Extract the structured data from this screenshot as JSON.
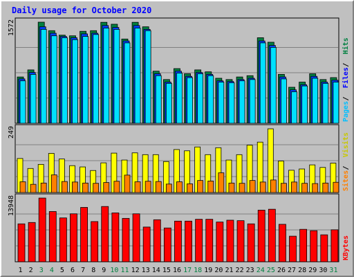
{
  "chart_data": {
    "type": "bar",
    "title": "Daily usage for October 2020",
    "categories": [
      "1",
      "2",
      "3",
      "4",
      "5",
      "6",
      "7",
      "8",
      "9",
      "10",
      "11",
      "12",
      "13",
      "14",
      "15",
      "16",
      "17",
      "18",
      "19",
      "20",
      "21",
      "22",
      "23",
      "24",
      "25",
      "26",
      "27",
      "28",
      "29",
      "30",
      "31"
    ],
    "weekend_days": [
      "3",
      "4",
      "10",
      "11",
      "17",
      "18",
      "24",
      "25",
      "31"
    ],
    "panels": [
      {
        "name": "hits-files-pages",
        "max_label": "1572",
        "ymax": 1572,
        "legend": [
          "Pages",
          "Files",
          "Hits"
        ],
        "series": [
          {
            "name": "Hits",
            "values": [
              720,
              830,
              1572,
              1440,
              1370,
              1360,
              1430,
              1440,
              1570,
              1540,
              1310,
              1570,
              1500,
              810,
              680,
              850,
              770,
              830,
              800,
              700,
              680,
              720,
              740,
              1330,
              1260,
              760,
              560,
              640,
              770,
              680,
              710
            ]
          },
          {
            "name": "Files",
            "values": [
              690,
              790,
              1500,
              1400,
              1350,
              1330,
              1390,
              1400,
              1520,
              1490,
              1280,
              1520,
              1460,
              770,
              640,
              810,
              730,
              790,
              760,
              660,
              650,
              680,
              700,
              1280,
              1210,
              720,
              520,
              600,
              730,
              640,
              670
            ]
          },
          {
            "name": "Pages",
            "values": [
              660,
              760,
              1460,
              1360,
              1330,
              1300,
              1350,
              1380,
              1480,
              1460,
              1250,
              1480,
              1440,
              740,
              620,
              780,
              710,
              770,
              740,
              640,
              630,
              660,
              680,
              1250,
              1180,
              690,
              490,
              580,
              700,
              620,
              640
            ]
          }
        ]
      },
      {
        "name": "visits-sites",
        "max_label": "249",
        "ymax": 249,
        "legend": [
          "Sites",
          "Visits"
        ],
        "series": [
          {
            "name": "Visits",
            "values": [
              133,
              94,
              110,
              153,
              131,
              105,
              100,
              86,
              116,
              154,
              127,
              155,
              148,
              148,
              121,
              168,
              163,
              178,
              148,
              175,
              127,
              148,
              185,
              197,
              249,
              123,
              87,
              92,
              108,
              98,
              115
            ]
          },
          {
            "name": "Sites",
            "values": [
              42,
              32,
              37,
              69,
              43,
              41,
              37,
              36,
              39,
              44,
              68,
              42,
              44,
              43,
              33,
              42,
              34,
              47,
              45,
              77,
              37,
              36,
              47,
              41,
              49,
              36,
              41,
              36,
              35,
              37,
              40
            ]
          }
        ]
      },
      {
        "name": "kbytes",
        "max_label": "13948",
        "ymax": 13948,
        "legend": [
          "KBytes"
        ],
        "series": [
          {
            "name": "KBytes",
            "values": [
              8300,
              8600,
              13948,
              11000,
              9600,
              10500,
              11900,
              8800,
              12100,
              10700,
              9500,
              10500,
              7600,
              9200,
              7400,
              8900,
              8900,
              9300,
              9300,
              8700,
              9100,
              9000,
              8300,
              11300,
              11500,
              8200,
              5600,
              7100,
              6800,
              5900,
              7000
            ]
          }
        ]
      }
    ],
    "colors": {
      "hits": "#008040",
      "files": "#0040ff",
      "pages": "#00e0ff",
      "visits": "#ffff00",
      "sites": "#ff8000",
      "kbytes": "#ff0000",
      "title": "#0000ff",
      "weekend_label": "#008040",
      "weekday_label": "#000000",
      "legend_hits": "#008040",
      "legend_files": "#0000ff",
      "legend_pages": "#00bfff",
      "legend_visits": "#c8c800",
      "legend_sites": "#ff8000",
      "legend_kbytes": "#ff0000"
    }
  }
}
